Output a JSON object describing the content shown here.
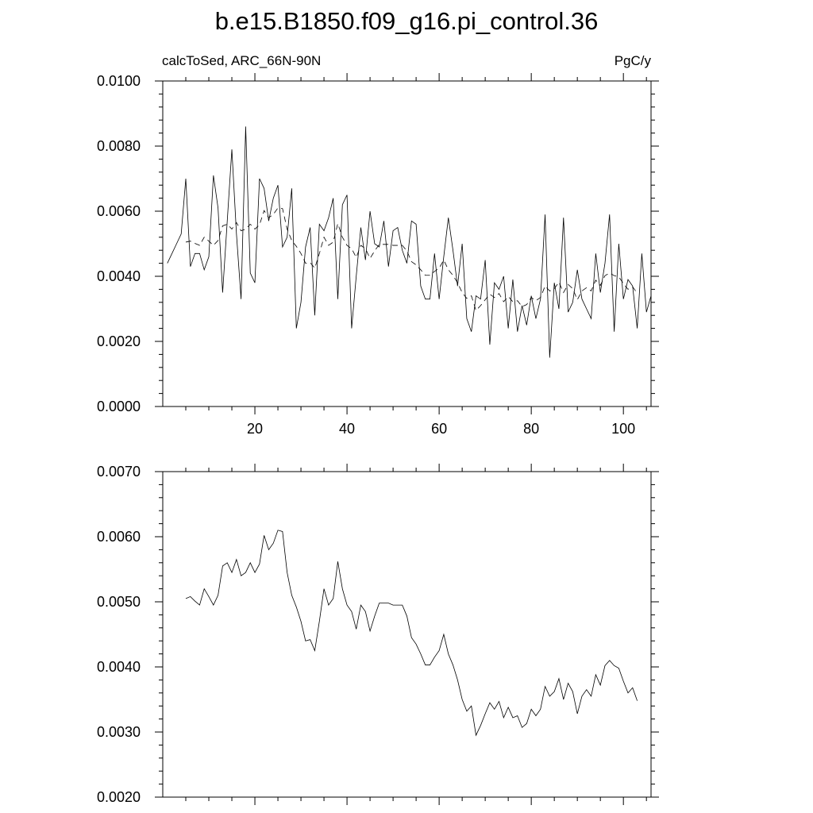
{
  "title": "b.e15.B1850.f09_g16.pi_control.36",
  "chart_data": [
    {
      "type": "line",
      "left_label": "calcToSed, ARC_66N-90N",
      "right_label": "PgC/y",
      "xlim": [
        0,
        106
      ],
      "ylim": [
        0,
        0.01
      ],
      "x_ticks": [
        20,
        40,
        60,
        80,
        100
      ],
      "x_tick_labels": [
        "20",
        "40",
        "60",
        "80",
        "100"
      ],
      "y_ticks": [
        0,
        0.002,
        0.004,
        0.006,
        0.008,
        0.01
      ],
      "y_tick_labels": [
        "0.0000",
        "0.0020",
        "0.0040",
        "0.0060",
        "0.0080",
        "0.0100"
      ],
      "grid": false,
      "series": [
        {
          "style": "solid",
          "x_start": 1,
          "values": [
            0.0044,
            0.0047,
            0.005,
            0.0053,
            0.007,
            0.0043,
            0.0047,
            0.0047,
            0.0042,
            0.0046,
            0.0071,
            0.0061,
            0.0035,
            0.0057,
            0.0079,
            0.0053,
            0.0033,
            0.0086,
            0.0041,
            0.0038,
            0.007,
            0.0067,
            0.0057,
            0.0064,
            0.0068,
            0.0049,
            0.0052,
            0.0067,
            0.0024,
            0.0032,
            0.0049,
            0.0055,
            0.0028,
            0.0056,
            0.0054,
            0.0058,
            0.0064,
            0.0033,
            0.0062,
            0.0065,
            0.0024,
            0.004,
            0.0055,
            0.0045,
            0.006,
            0.005,
            0.0049,
            0.0057,
            0.0043,
            0.0054,
            0.0055,
            0.0048,
            0.0044,
            0.0057,
            0.0056,
            0.0037,
            0.0033,
            0.0033,
            0.0047,
            0.0033,
            0.0046,
            0.0058,
            0.0048,
            0.0037,
            0.005,
            0.0027,
            0.0023,
            0.0034,
            0.0033,
            0.0045,
            0.0019,
            0.0038,
            0.0036,
            0.004,
            0.0024,
            0.0039,
            0.0023,
            0.0031,
            0.0025,
            0.0034,
            0.0027,
            0.0033,
            0.0059,
            0.0015,
            0.0038,
            0.003,
            0.0058,
            0.0029,
            0.0032,
            0.0042,
            0.0033,
            0.003,
            0.0027,
            0.0047,
            0.0035,
            0.0044,
            0.0059,
            0.0023,
            0.005,
            0.0033,
            0.0039,
            0.0037,
            0.0024,
            0.0047,
            0.0029,
            0.0034
          ]
        },
        {
          "style": "dashed",
          "x_start": 5,
          "values": [
            0.00505,
            0.00508,
            0.00501,
            0.00495,
            0.0052,
            0.00508,
            0.00495,
            0.0051,
            0.00555,
            0.0056,
            0.00545,
            0.00565,
            0.0054,
            0.00545,
            0.0056,
            0.00545,
            0.00558,
            0.00602,
            0.0058,
            0.0059,
            0.0061,
            0.00608,
            0.00545,
            0.0051,
            0.00492,
            0.0047,
            0.0044,
            0.00442,
            0.00425,
            0.0047,
            0.0052,
            0.00495,
            0.00505,
            0.00562,
            0.0052,
            0.00495,
            0.00485,
            0.00458,
            0.00495,
            0.00485,
            0.00455,
            0.00478,
            0.00498,
            0.00498,
            0.00498,
            0.00495,
            0.00495,
            0.00495,
            0.00478,
            0.00445,
            0.00435,
            0.0042,
            0.00403,
            0.00403,
            0.00415,
            0.00425,
            0.0045,
            0.0042,
            0.00403,
            0.0038,
            0.0035,
            0.00332,
            0.0034,
            0.00295,
            0.0031,
            0.00328,
            0.00345,
            0.00335,
            0.00347,
            0.00322,
            0.00338,
            0.00322,
            0.00325,
            0.00307,
            0.00313,
            0.00335,
            0.00325,
            0.00335,
            0.0037,
            0.00355,
            0.00362,
            0.00382,
            0.0035,
            0.00375,
            0.00362,
            0.00328,
            0.00355,
            0.00365,
            0.00355,
            0.00388,
            0.00372,
            0.00402,
            0.0041,
            0.00402,
            0.00398,
            0.00378,
            0.0036,
            0.00368,
            0.00348
          ]
        }
      ]
    },
    {
      "type": "line",
      "xlim": [
        0,
        106
      ],
      "ylim": [
        0.002,
        0.007
      ],
      "x_ticks": [
        20,
        40,
        60,
        80,
        100
      ],
      "y_ticks": [
        0.002,
        0.003,
        0.004,
        0.005,
        0.006,
        0.007
      ],
      "y_tick_labels": [
        "0.0020",
        "0.0030",
        "0.0040",
        "0.0050",
        "0.0060",
        "0.0070"
      ],
      "grid": false,
      "series": [
        {
          "style": "solid",
          "x_start": 5,
          "values": [
            0.00505,
            0.00508,
            0.00501,
            0.00495,
            0.0052,
            0.00508,
            0.00495,
            0.0051,
            0.00555,
            0.0056,
            0.00545,
            0.00565,
            0.0054,
            0.00545,
            0.0056,
            0.00545,
            0.00558,
            0.00602,
            0.0058,
            0.0059,
            0.0061,
            0.00608,
            0.00545,
            0.0051,
            0.00492,
            0.0047,
            0.0044,
            0.00442,
            0.00425,
            0.0047,
            0.0052,
            0.00495,
            0.00505,
            0.00562,
            0.0052,
            0.00495,
            0.00485,
            0.00458,
            0.00495,
            0.00485,
            0.00455,
            0.00478,
            0.00498,
            0.00498,
            0.00498,
            0.00495,
            0.00495,
            0.00495,
            0.00478,
            0.00445,
            0.00435,
            0.0042,
            0.00403,
            0.00403,
            0.00415,
            0.00425,
            0.0045,
            0.0042,
            0.00403,
            0.0038,
            0.0035,
            0.00332,
            0.0034,
            0.00295,
            0.0031,
            0.00328,
            0.00345,
            0.00335,
            0.00347,
            0.00322,
            0.00338,
            0.00322,
            0.00325,
            0.00307,
            0.00313,
            0.00335,
            0.00325,
            0.00335,
            0.0037,
            0.00355,
            0.00362,
            0.00382,
            0.0035,
            0.00375,
            0.00362,
            0.00328,
            0.00355,
            0.00365,
            0.00355,
            0.00388,
            0.00372,
            0.00402,
            0.0041,
            0.00402,
            0.00398,
            0.00378,
            0.0036,
            0.00368,
            0.00348
          ]
        }
      ]
    }
  ]
}
